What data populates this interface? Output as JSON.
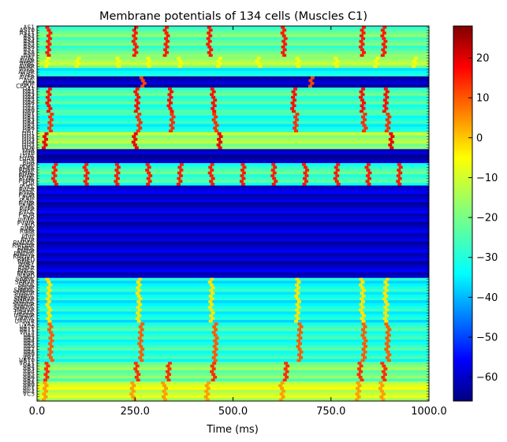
{
  "chart_data": {
    "type": "heatmap",
    "title": "Membrane potentials of 134 cells (Muscles C1)",
    "xlabel": "Time (ms)",
    "ylabel": "",
    "xlim": [
      0,
      1000
    ],
    "x_ticks": [
      "0.0",
      "250.0",
      "500.0",
      "750.0",
      "1000.0"
    ],
    "colorbar": {
      "colormap": "jet",
      "range": [
        -66,
        28
      ],
      "ticks": [
        20,
        10,
        0,
        -10,
        -20,
        -30,
        -40,
        -50,
        -60
      ],
      "tick_labels": [
        "20",
        "10",
        "0",
        "−10",
        "−20",
        "−30",
        "−40",
        "−50",
        "−60"
      ]
    },
    "row_count": 134,
    "row_labels": [
      "AS1",
      "AS10",
      "AS11",
      "AS2",
      "AS3",
      "AS4",
      "AS5",
      "AS6",
      "AS7",
      "AS8",
      "AS9",
      "AVAL",
      "AVAR",
      "AVBL",
      "AVBR",
      "AVDL",
      "AVDR",
      "AVEL",
      "AVER",
      "AVL",
      "AVM",
      "CEPVL",
      "DA1",
      "DA2",
      "DA3",
      "DA4",
      "DA5",
      "DA6",
      "DA7",
      "DA8",
      "DA9",
      "DB1",
      "DB2",
      "DB3",
      "DB4",
      "DB5",
      "DB6",
      "DB7",
      "DD1",
      "DD2",
      "DD3",
      "DD4",
      "DD5",
      "DD6",
      "DVA",
      "DVB",
      "LUAL",
      "LUAR",
      "PDA",
      "PDB",
      "PDEL",
      "PDER",
      "PHAL",
      "PHAR",
      "PLML",
      "PLMR",
      "PQR",
      "PVCL",
      "PVCR",
      "PVDL",
      "PVDR",
      "PVM",
      "PVNL",
      "PVNR",
      "PVPL",
      "PVPR",
      "PVQL",
      "PVQR",
      "PVR",
      "PVWL",
      "PVWR",
      "RID",
      "RIML",
      "RIMR",
      "RIS",
      "RIVL",
      "RIVR",
      "RMDDL",
      "RMDDR",
      "RMDL",
      "RMDR",
      "RMDVL",
      "RMDVR",
      "RMED",
      "RMEV",
      "RMFL",
      "RMFR",
      "RMGL",
      "RMGR",
      "SABD",
      "SABVL",
      "SABVR",
      "SDQL",
      "SDQR",
      "SMBDL",
      "SMBDR",
      "SMBVL",
      "SMBVR",
      "SMDDL",
      "SMDDR",
      "SMDVL",
      "SMDVR",
      "URADL",
      "URADR",
      "URAVL",
      "URAVR",
      "VA1",
      "VA10",
      "VA11",
      "VA12",
      "VA2",
      "VA3",
      "VA4",
      "VA5",
      "VA6",
      "VA7",
      "VA8",
      "VA9",
      "VB1",
      "VB10",
      "VB11",
      "VB2",
      "VB3",
      "VB4",
      "VB5",
      "VB6",
      "VB7",
      "VB8",
      "VB9",
      "VC1",
      "VC2",
      "VC3"
    ],
    "row_groups": [
      {
        "from": 0,
        "to": 10,
        "baseline": -22,
        "spike_times": [
          25,
          245,
          325,
          435,
          625,
          825,
          880
        ],
        "spike_mV": 14
      },
      {
        "from": 11,
        "to": 14,
        "baseline": -15,
        "spike_times": [
          20,
          100,
          200,
          280,
          360,
          460,
          560,
          660,
          760,
          860,
          960
        ],
        "spike_mV": -8
      },
      {
        "from": 15,
        "to": 17,
        "baseline": -32,
        "spike_times": [],
        "spike_mV": -32
      },
      {
        "from": 18,
        "to": 21,
        "baseline": -60,
        "spike_times": [
          265,
          695
        ],
        "spike_mV": 10
      },
      {
        "from": 22,
        "to": 30,
        "baseline": -25,
        "spike_times": [
          25,
          250,
          335,
          445,
          650,
          825,
          885
        ],
        "spike_mV": 15
      },
      {
        "from": 31,
        "to": 37,
        "baseline": -28,
        "spike_times": [
          30,
          255,
          340,
          450,
          655,
          830,
          890
        ],
        "spike_mV": 12
      },
      {
        "from": 38,
        "to": 43,
        "baseline": -16,
        "spike_times": [
          15,
          245,
          460,
          900
        ],
        "spike_mV": 18
      },
      {
        "from": 44,
        "to": 48,
        "baseline": -62,
        "spike_times": [],
        "spike_mV": -62
      },
      {
        "from": 49,
        "to": 56,
        "baseline": -25,
        "spike_times": [
          40,
          120,
          200,
          280,
          360,
          440,
          520,
          600,
          680,
          760,
          840,
          920
        ],
        "spike_mV": 14
      },
      {
        "from": 57,
        "to": 89,
        "baseline": -59,
        "spike_times": [],
        "spike_mV": -59
      },
      {
        "from": 90,
        "to": 105,
        "baseline": -30,
        "spike_times": [
          25,
          255,
          440,
          660,
          825,
          885
        ],
        "spike_mV": -5
      },
      {
        "from": 106,
        "to": 119,
        "baseline": -27,
        "spike_times": [
          30,
          260,
          450,
          665,
          830,
          890
        ],
        "spike_mV": 8
      },
      {
        "from": 120,
        "to": 126,
        "baseline": -20,
        "spike_times": [
          20,
          250,
          330,
          445,
          630,
          820,
          880
        ],
        "spike_mV": 12
      },
      {
        "from": 127,
        "to": 133,
        "baseline": -12,
        "spike_times": [
          15,
          240,
          320,
          430,
          620,
          815,
          875
        ],
        "spike_mV": 2
      }
    ]
  }
}
